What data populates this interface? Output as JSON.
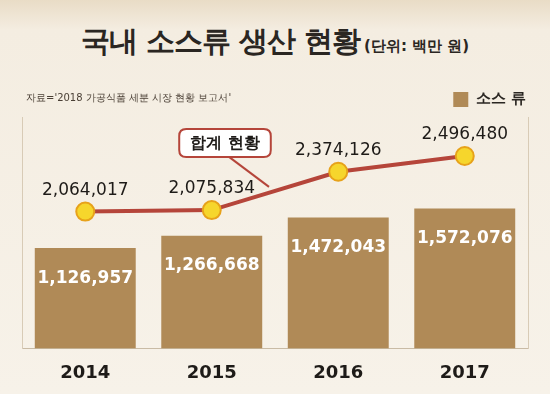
{
  "chart_data": {
    "type": "bar",
    "title": "국내 소스류 생산 현황",
    "subtitle": "(단위: 백만 원)",
    "source": "자료='2018 가공식품 세분 시장 현황 보고서'",
    "annotations": [
      {
        "text": "합계 현황"
      }
    ],
    "categories": [
      "2014",
      "2015",
      "2016",
      "2017"
    ],
    "series": [
      {
        "name": "소스 류",
        "type": "bar",
        "color": "#b08a57",
        "values": [
          1126957,
          1266668,
          1472043,
          1572076
        ],
        "value_labels": [
          "1,126,957",
          "1,266,668",
          "1,472,043",
          "1,572,076"
        ]
      },
      {
        "type": "line",
        "axis": "y2",
        "color": "#b5453a",
        "marker": "circle",
        "values": [
          2064017,
          2075834,
          2374126,
          2496480
        ],
        "value_labels": [
          "2,064,017",
          "2,075,834",
          "2,374,126",
          "2,496,480"
        ]
      }
    ],
    "ylim": [
      0,
      2600000
    ],
    "y2lim": [
      1000000,
      2800000
    ],
    "grid": false,
    "legend": "top-right",
    "data_labels": true,
    "tick_labels": "x"
  }
}
